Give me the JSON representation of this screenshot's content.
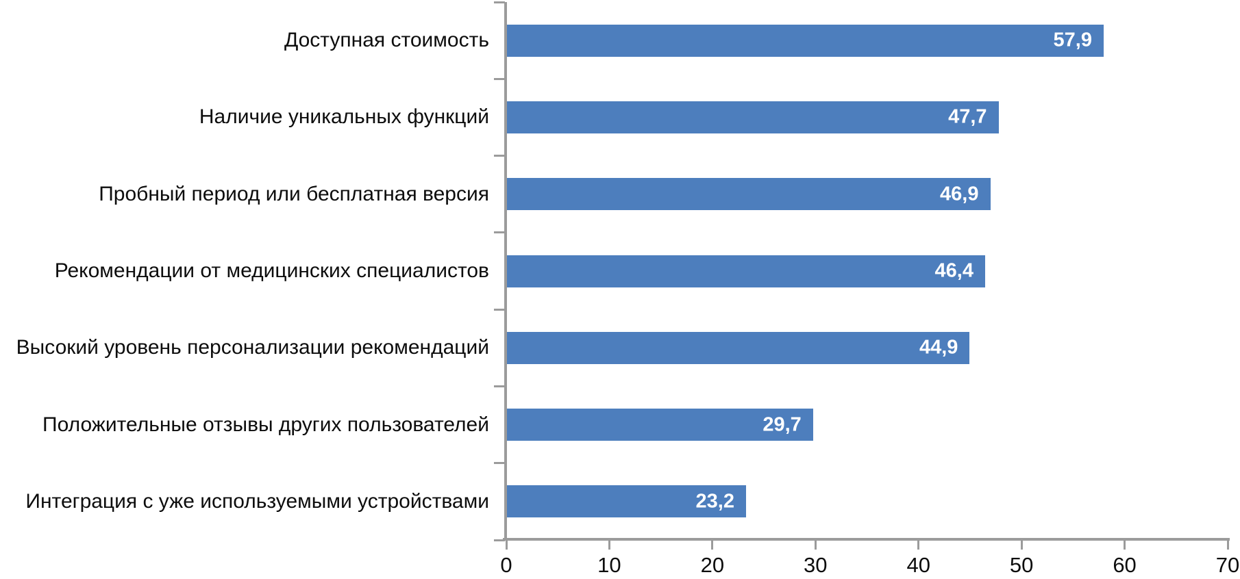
{
  "chart_data": {
    "type": "bar",
    "orientation": "horizontal",
    "title": "",
    "xlabel": "",
    "ylabel": "",
    "grid": "off",
    "legend_position": "none",
    "categories": [
      "Доступная стоимость",
      "Наличие уникальных функций",
      "Пробный период или бесплатная версия",
      "Рекомендации от медицинских специалистов",
      "Высокий уровень персонализации рекомендаций",
      "Положительные отзывы других пользователей",
      "Интеграция с уже используемыми устройствами"
    ],
    "values": [
      57.9,
      47.7,
      46.9,
      46.4,
      44.9,
      29.7,
      23.2
    ],
    "value_labels": [
      "57,9",
      "47,7",
      "46,9",
      "46,4",
      "44,9",
      "29,7",
      "23,2"
    ],
    "xlim": [
      0,
      70
    ],
    "x_tick_values": [
      0,
      10,
      20,
      30,
      40,
      50,
      60,
      70
    ],
    "x_tick_labels": [
      "0",
      "10",
      "20",
      "30",
      "40",
      "50",
      "60",
      "70"
    ],
    "colors": {
      "bar": "#4D7EBD",
      "value_label": "#FFFFFF",
      "axis": "#9B9B9B",
      "text": "#0D0D0D"
    }
  }
}
